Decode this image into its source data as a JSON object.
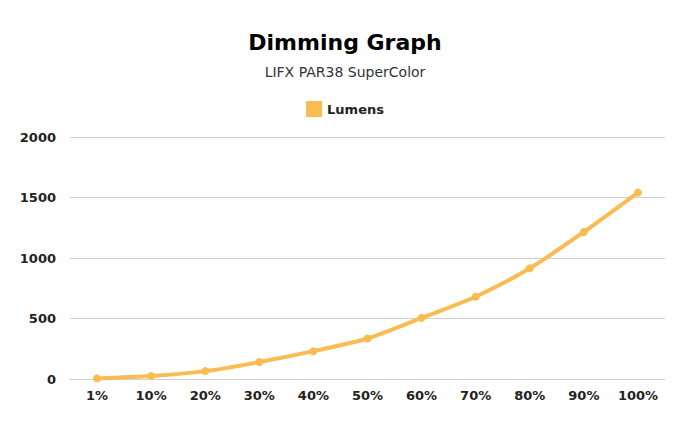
{
  "chart_data": {
    "type": "line",
    "title": "Dimming Graph",
    "subtitle": "LIFX PAR38 SuperColor",
    "categories": [
      "1%",
      "10%",
      "20%",
      "30%",
      "40%",
      "50%",
      "60%",
      "70%",
      "80%",
      "90%",
      "100%"
    ],
    "series": [
      {
        "name": "Lumens",
        "color": "#f9bc52",
        "marker": "circle",
        "line_style": "solid",
        "values": [
          5,
          25,
          65,
          140,
          230,
          335,
          505,
          680,
          915,
          1215,
          1540
        ]
      }
    ],
    "ylim": [
      0,
      2000
    ],
    "yticks": [
      0,
      500,
      1000,
      1500,
      2000
    ],
    "grid": true,
    "legend": "top"
  }
}
